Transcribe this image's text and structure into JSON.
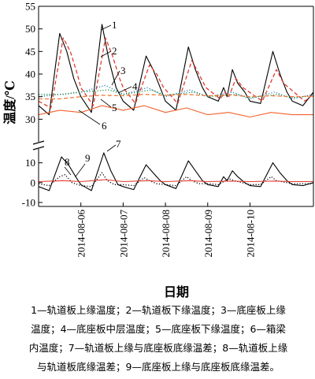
{
  "chart_data": {
    "type": "line",
    "xlabel": "日期",
    "ylabel": "温度/℃",
    "xlim": [
      "2014-08-05T00:00",
      "2014-08-11T12:00"
    ],
    "x_ticks": [
      "2014-08-06",
      "2014-08-07",
      "2014-08-08",
      "2014-08-09",
      "2014-08-10"
    ],
    "upper_panel": {
      "ylim": [
        25,
        55
      ],
      "y_ticks": [
        "30",
        "35",
        "40",
        "45",
        "50",
        "55"
      ]
    },
    "lower_panel": {
      "ylim": [
        -12,
        17
      ],
      "y_ticks": [
        "-10",
        "0",
        "10"
      ]
    },
    "callouts": [
      "1",
      "2",
      "3",
      "4",
      "5",
      "6",
      "7",
      "8",
      "9"
    ],
    "series": [
      {
        "name": "轨道板上缘温度",
        "id": "1",
        "panel": "upper",
        "color": "#000000",
        "style": "solid",
        "x": [
          "2014-08-05T00:00",
          "2014-08-05T06:00",
          "2014-08-05T12:00",
          "2014-08-05T16:00",
          "2014-08-05T20:00",
          "2014-08-06T00:00",
          "2014-08-06T06:00",
          "2014-08-06T12:00",
          "2014-08-06T16:00",
          "2014-08-06T20:00",
          "2014-08-07T00:00",
          "2014-08-07T06:00",
          "2014-08-07T13:00",
          "2014-08-07T17:00",
          "2014-08-07T21:00",
          "2014-08-08T00:00",
          "2014-08-08T06:00",
          "2014-08-08T13:00",
          "2014-08-08T17:00",
          "2014-08-08T21:00",
          "2014-08-09T00:00",
          "2014-08-09T06:00",
          "2014-08-09T09:00",
          "2014-08-09T11:00",
          "2014-08-09T14:00",
          "2014-08-09T17:00",
          "2014-08-09T21:00",
          "2014-08-10T00:00",
          "2014-08-10T06:00",
          "2014-08-10T13:00",
          "2014-08-10T17:00",
          "2014-08-10T21:00",
          "2014-08-11T00:00",
          "2014-08-11T06:00",
          "2014-08-11T12:00"
        ],
        "values": [
          33,
          31,
          49,
          45,
          39,
          35,
          31.5,
          51,
          43,
          37,
          34,
          32,
          44,
          41,
          37,
          34,
          32,
          46,
          41,
          37,
          35,
          34,
          37,
          35,
          41,
          38,
          36,
          34,
          33.5,
          45,
          40,
          36,
          34,
          33,
          36
        ]
      },
      {
        "name": "轨道板下缘温度",
        "id": "2",
        "panel": "upper",
        "color": "#e23b2e",
        "style": "dashed",
        "x": [
          "2014-08-05T00:00",
          "2014-08-05T07:00",
          "2014-08-05T14:00",
          "2014-08-05T18:00",
          "2014-08-05T22:00",
          "2014-08-06T00:00",
          "2014-08-06T07:00",
          "2014-08-06T14:00",
          "2014-08-06T18:00",
          "2014-08-06T22:00",
          "2014-08-07T00:00",
          "2014-08-07T07:00",
          "2014-08-07T15:00",
          "2014-08-07T19:00",
          "2014-08-07T23:00",
          "2014-08-08T07:00",
          "2014-08-08T15:00",
          "2014-08-08T19:00",
          "2014-08-08T23:00",
          "2014-08-09T07:00",
          "2014-08-09T10:00",
          "2014-08-09T12:00",
          "2014-08-09T16:00",
          "2014-08-09T20:00",
          "2014-08-10T07:00",
          "2014-08-10T15:00",
          "2014-08-10T19:00",
          "2014-08-11T07:00",
          "2014-08-11T12:00"
        ],
        "values": [
          34,
          32.5,
          48,
          45,
          40,
          37,
          33,
          48,
          44,
          39,
          37,
          33.5,
          42,
          40,
          37,
          33.5,
          43,
          40,
          37,
          34.5,
          36,
          35,
          39,
          37,
          34,
          41,
          38,
          34,
          35.5
        ]
      },
      {
        "name": "底座板上缘温度",
        "id": "3",
        "panel": "upper",
        "color": "#2e7fb8",
        "style": "dotted",
        "x": [
          "2014-08-05T00:00",
          "2014-08-05T12:00",
          "2014-08-06T00:00",
          "2014-08-06T14:00",
          "2014-08-07T00:00",
          "2014-08-07T14:00",
          "2014-08-08T00:00",
          "2014-08-08T14:00",
          "2014-08-09T00:00",
          "2014-08-09T14:00",
          "2014-08-10T00:00",
          "2014-08-10T14:00",
          "2014-08-11T00:00",
          "2014-08-11T12:00"
        ],
        "values": [
          35,
          35.5,
          36,
          37.5,
          35.5,
          37,
          35,
          36.5,
          35,
          36,
          34.5,
          36,
          34.5,
          35.5
        ]
      },
      {
        "name": "底座板中层温度",
        "id": "4",
        "panel": "upper",
        "color": "#1a8f3c",
        "style": "dotted",
        "x": [
          "2014-08-05T00:00",
          "2014-08-05T14:00",
          "2014-08-06T00:00",
          "2014-08-06T16:00",
          "2014-08-07T00:00",
          "2014-08-07T16:00",
          "2014-08-08T00:00",
          "2014-08-08T16:00",
          "2014-08-09T00:00",
          "2014-08-09T16:00",
          "2014-08-10T00:00",
          "2014-08-10T16:00",
          "2014-08-11T00:00",
          "2014-08-11T12:00"
        ],
        "values": [
          35.5,
          35.5,
          36,
          36.5,
          35.5,
          36.5,
          35.3,
          36,
          35,
          35.5,
          34.8,
          35.5,
          34.8,
          35.2
        ]
      },
      {
        "name": "底座板下缘温度",
        "id": "5",
        "panel": "upper",
        "color": "#f27a3a",
        "style": "dashed",
        "x": [
          "2014-08-05T00:00",
          "2014-08-05T12:00",
          "2014-08-06T00:00",
          "2014-08-06T12:00",
          "2014-08-07T00:00",
          "2014-08-07T12:00",
          "2014-08-08T00:00",
          "2014-08-08T12:00",
          "2014-08-09T00:00",
          "2014-08-09T12:00",
          "2014-08-10T00:00",
          "2014-08-10T12:00",
          "2014-08-11T00:00",
          "2014-08-11T12:00"
        ],
        "values": [
          34.5,
          34.5,
          35,
          35.3,
          35.2,
          35.5,
          35.3,
          35.5,
          35.2,
          35.4,
          35,
          35.2,
          35,
          35.1
        ]
      },
      {
        "name": "箱梁内温度",
        "id": "6",
        "panel": "upper",
        "color": "#f0622c",
        "style": "solid",
        "x": [
          "2014-08-05T00:00",
          "2014-08-05T12:00",
          "2014-08-06T00:00",
          "2014-08-06T12:00",
          "2014-08-07T00:00",
          "2014-08-07T12:00",
          "2014-08-08T00:00",
          "2014-08-08T12:00",
          "2014-08-09T00:00",
          "2014-08-09T12:00",
          "2014-08-10T00:00",
          "2014-08-10T12:00",
          "2014-08-11T00:00",
          "2014-08-11T12:00"
        ],
        "values": [
          31,
          32,
          31.5,
          33,
          32,
          33,
          31.5,
          32.5,
          31,
          31.5,
          30.5,
          31.5,
          31,
          31
        ]
      },
      {
        "name": "轨道板上缘与底座板底缘温差",
        "id": "7",
        "panel": "lower",
        "color": "#000000",
        "style": "solid",
        "x": [
          "2014-08-05T00:00",
          "2014-08-05T06:00",
          "2014-08-05T13:00",
          "2014-08-05T17:00",
          "2014-08-05T21:00",
          "2014-08-06T00:00",
          "2014-08-06T06:00",
          "2014-08-06T13:00",
          "2014-08-06T17:00",
          "2014-08-06T21:00",
          "2014-08-07T00:00",
          "2014-08-07T06:00",
          "2014-08-07T13:00",
          "2014-08-07T17:00",
          "2014-08-07T21:00",
          "2014-08-08T00:00",
          "2014-08-08T06:00",
          "2014-08-08T13:00",
          "2014-08-08T17:00",
          "2014-08-08T21:00",
          "2014-08-09T00:00",
          "2014-08-09T06:00",
          "2014-08-09T09:00",
          "2014-08-09T11:00",
          "2014-08-09T14:00",
          "2014-08-09T17:00",
          "2014-08-09T21:00",
          "2014-08-10T00:00",
          "2014-08-10T06:00",
          "2014-08-10T13:00",
          "2014-08-10T17:00",
          "2014-08-10T21:00",
          "2014-08-11T00:00",
          "2014-08-11T06:00",
          "2014-08-11T12:00"
        ],
        "values": [
          -2,
          -4,
          13,
          9,
          3,
          -1,
          -4,
          15,
          6,
          -1,
          -2,
          -3.5,
          9,
          5,
          1,
          -1,
          -3,
          11,
          6,
          1,
          -1,
          -2,
          3,
          1,
          6,
          3,
          0,
          -1.5,
          -2,
          10,
          5,
          1,
          -1,
          -1.5,
          0
        ]
      },
      {
        "name": "轨道板上缘与轨道板底缘温差",
        "id": "8",
        "panel": "lower",
        "color": "#000000",
        "style": "dotted",
        "x": [
          "2014-08-05T00:00",
          "2014-08-05T06:00",
          "2014-08-05T12:00",
          "2014-08-05T15:00",
          "2014-08-05T19:00",
          "2014-08-06T00:00",
          "2014-08-06T06:00",
          "2014-08-06T12:00",
          "2014-08-06T15:00",
          "2014-08-06T19:00",
          "2014-08-07T00:00",
          "2014-08-07T06:00",
          "2014-08-07T12:00",
          "2014-08-07T15:00",
          "2014-08-07T19:00",
          "2014-08-08T00:00",
          "2014-08-08T06:00",
          "2014-08-08T12:00",
          "2014-08-08T15:00",
          "2014-08-08T19:00",
          "2014-08-09T00:00",
          "2014-08-09T06:00",
          "2014-08-09T12:00",
          "2014-08-09T15:00",
          "2014-08-10T00:00",
          "2014-08-10T06:00",
          "2014-08-10T12:00",
          "2014-08-10T15:00",
          "2014-08-11T00:00",
          "2014-08-11T12:00"
        ],
        "values": [
          -0.5,
          -1.5,
          3,
          4,
          0,
          -1.5,
          -2,
          5,
          1,
          -1,
          -1,
          -1.5,
          2.5,
          1,
          -0.5,
          -1,
          -1.5,
          3,
          1,
          -0.5,
          -0.5,
          -1,
          2,
          1,
          -1,
          -1,
          3,
          1,
          -0.5,
          -0.5
        ]
      },
      {
        "name": "底座板上缘与底座板底缘温差",
        "id": "9",
        "panel": "lower",
        "color": "#e23b2e",
        "style": "solid",
        "x": [
          "2014-08-05T00:00",
          "2014-08-05T14:00",
          "2014-08-06T00:00",
          "2014-08-06T14:00",
          "2014-08-07T00:00",
          "2014-08-07T14:00",
          "2014-08-08T00:00",
          "2014-08-08T14:00",
          "2014-08-09T00:00",
          "2014-08-09T14:00",
          "2014-08-10T00:00",
          "2014-08-10T14:00",
          "2014-08-11T00:00",
          "2014-08-11T12:00"
        ],
        "values": [
          0.5,
          1,
          0.5,
          1.5,
          0.5,
          1,
          0.5,
          1,
          0.5,
          0.8,
          0.5,
          0.8,
          0.5,
          0.5
        ]
      }
    ]
  },
  "caption": {
    "lines": [
      "1—轨道板上缘温度；2—轨道板下缘温度；3—底座板上缘",
      "温度；4—底座板中层温度；5—底座板下缘温度；6—箱梁",
      "内温度；7—轨道板上缘与底座板底缘温差；8—轨道板上缘",
      "与轨道板底缘温差；9—底座板上缘与底座板底缘温差。"
    ]
  }
}
